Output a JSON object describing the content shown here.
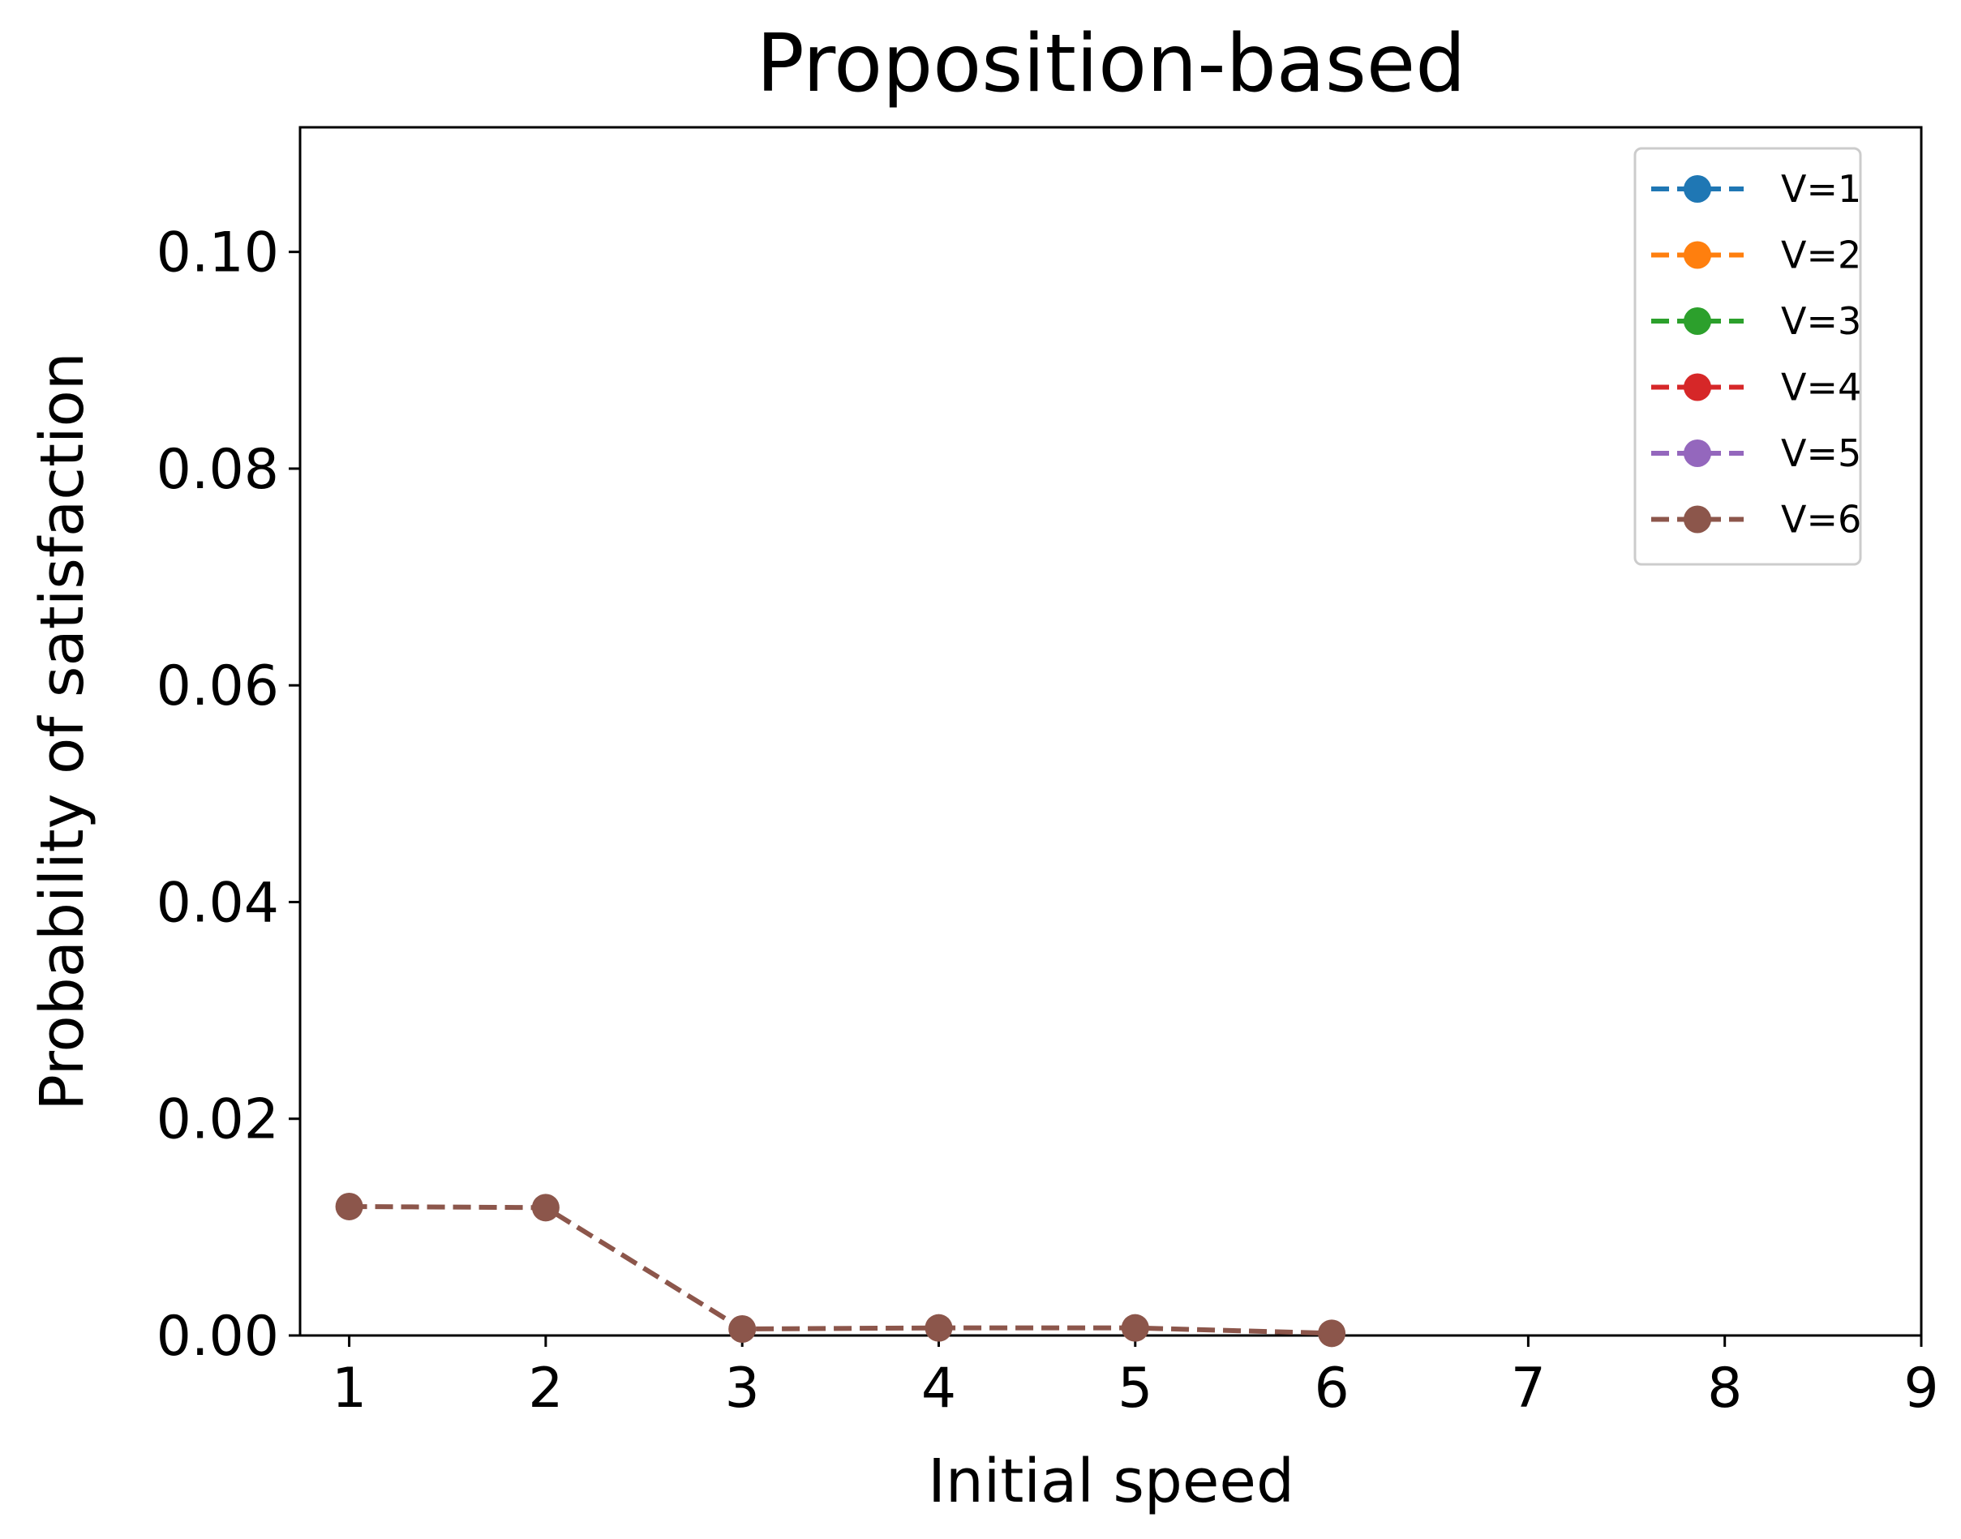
{
  "chart_data": {
    "type": "line",
    "title": "Proposition-based",
    "xlabel": "Initial speed",
    "ylabel": "Probability of satisfaction",
    "xlim": [
      0.75,
      9
    ],
    "ylim": [
      0,
      0.1115
    ],
    "xticks": [
      1,
      2,
      3,
      4,
      5,
      6,
      7,
      8,
      9
    ],
    "xtick_labels": [
      "1",
      "2",
      "3",
      "4",
      "5",
      "6",
      "7",
      "8",
      "9"
    ],
    "yticks": [
      0,
      0.02,
      0.04,
      0.06,
      0.08,
      0.1
    ],
    "ytick_labels": [
      "0.00",
      "0.02",
      "0.04",
      "0.06",
      "0.08",
      "0.10"
    ],
    "grid": false,
    "legend_position": "top-right",
    "line_style": "dashed",
    "marker": "circle",
    "series": [
      {
        "name": "V=1",
        "color": "#1f77b4",
        "x": [],
        "y": []
      },
      {
        "name": "V=2",
        "color": "#ff7f0e",
        "x": [],
        "y": []
      },
      {
        "name": "V=3",
        "color": "#2ca02c",
        "x": [],
        "y": []
      },
      {
        "name": "V=4",
        "color": "#d62728",
        "x": [],
        "y": []
      },
      {
        "name": "V=5",
        "color": "#9467bd",
        "x": [],
        "y": []
      },
      {
        "name": "V=6",
        "color": "#8c564b",
        "x": [
          1,
          2,
          3,
          4,
          5,
          6
        ],
        "y": [
          0.0119,
          0.0118,
          0.0006,
          0.0007,
          0.0007,
          0.0002
        ]
      }
    ]
  }
}
